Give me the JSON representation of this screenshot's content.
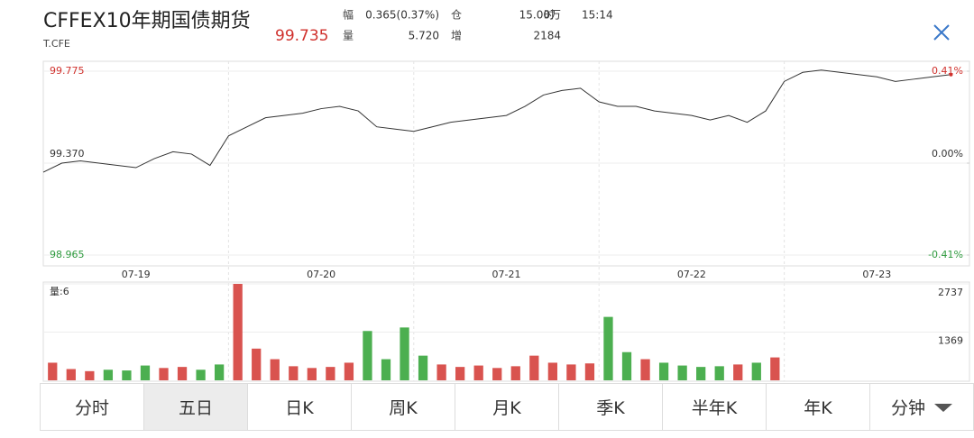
{
  "header": {
    "title": "CFFEX10年期国债期货",
    "code": "T.CFE",
    "price": "99.735",
    "stats": [
      [
        "幅",
        "0.365(0.37%)"
      ],
      [
        "仓",
        "15.00万"
      ],
      [
        "时",
        "15:14"
      ],
      [
        "量",
        "5.720"
      ],
      [
        "增",
        "2184"
      ]
    ]
  },
  "chart_data": [
    {
      "type": "line",
      "x": [
        0,
        1,
        2,
        3,
        4,
        5,
        6,
        7,
        8,
        9,
        10,
        11,
        12,
        13,
        14,
        15,
        16,
        17,
        18,
        19,
        20,
        21,
        22,
        23,
        24,
        25,
        26,
        27,
        28,
        29,
        30,
        31,
        32,
        33,
        34,
        35,
        36,
        37,
        38,
        39,
        40,
        41,
        42,
        43,
        44,
        45,
        46,
        47,
        48,
        49
      ],
      "series": [
        {
          "color": "#333333",
          "values": [
            99.33,
            99.37,
            99.38,
            99.37,
            99.36,
            99.35,
            99.39,
            99.42,
            99.41,
            99.36,
            99.49,
            99.53,
            99.57,
            99.58,
            99.59,
            99.61,
            99.62,
            99.6,
            99.53,
            99.52,
            99.51,
            99.53,
            99.55,
            99.56,
            99.57,
            99.58,
            99.62,
            99.67,
            99.69,
            99.7,
            99.64,
            99.62,
            99.62,
            99.6,
            99.59,
            99.58,
            99.56,
            99.58,
            99.55,
            99.6,
            99.73,
            99.77,
            99.78,
            99.77,
            99.76,
            99.75,
            99.73,
            99.74,
            99.75,
            99.76
          ]
        }
      ],
      "xlim": [
        0,
        50
      ],
      "xticks": [
        {
          "value": 5,
          "label": "07-19"
        },
        {
          "value": 15,
          "label": "07-20"
        },
        {
          "value": 25,
          "label": "07-21"
        },
        {
          "value": 35,
          "label": "07-22"
        },
        {
          "value": 45,
          "label": "07-23"
        }
      ],
      "ylim": [
        98.965,
        99.775
      ],
      "yticks": [
        98.965,
        {
          "value": 99.37,
          "label": "99.370"
        },
        99.775
      ],
      "y2lim": [
        -0.41,
        0.41
      ],
      "y2ticks": [
        {
          "value": -0.41,
          "label": "-0.41%"
        },
        {
          "value": 0,
          "label": "0.00%"
        },
        {
          "value": 0.41,
          "label": "0.41%"
        }
      ]
    },
    {
      "type": "bar",
      "title": "量:6",
      "x": [
        0,
        1,
        2,
        3,
        4,
        5,
        6,
        7,
        8,
        9,
        10,
        11,
        12,
        13,
        14,
        15,
        16,
        17,
        18,
        19,
        20,
        21,
        22,
        23,
        24,
        25,
        26,
        27,
        28,
        29,
        30,
        31,
        32,
        33,
        34,
        35,
        36,
        37,
        38,
        39,
        40,
        41,
        42,
        43,
        44,
        45,
        46,
        47,
        48,
        49
      ],
      "values": [
        500,
        320,
        260,
        300,
        280,
        420,
        350,
        380,
        300,
        450,
        2737,
        900,
        600,
        400,
        350,
        380,
        500,
        1400,
        600,
        1500,
        700,
        450,
        380,
        420,
        350,
        400,
        700,
        500,
        450,
        480,
        1800,
        800,
        600,
        500,
        420,
        380,
        400,
        450,
        500,
        650,
        null,
        null,
        null,
        null,
        null,
        null,
        null,
        null,
        null,
        null
      ],
      "up_color": "#d9534f",
      "down_color": "#4caf50",
      "xlim": [
        0,
        50
      ],
      "ylim": [
        0,
        2737
      ],
      "yticks": [
        1369,
        2737
      ]
    }
  ],
  "tabs": [
    "分时",
    "五日",
    "日K",
    "周K",
    "月K",
    "季K",
    "半年K",
    "年K",
    "分钟"
  ]
}
